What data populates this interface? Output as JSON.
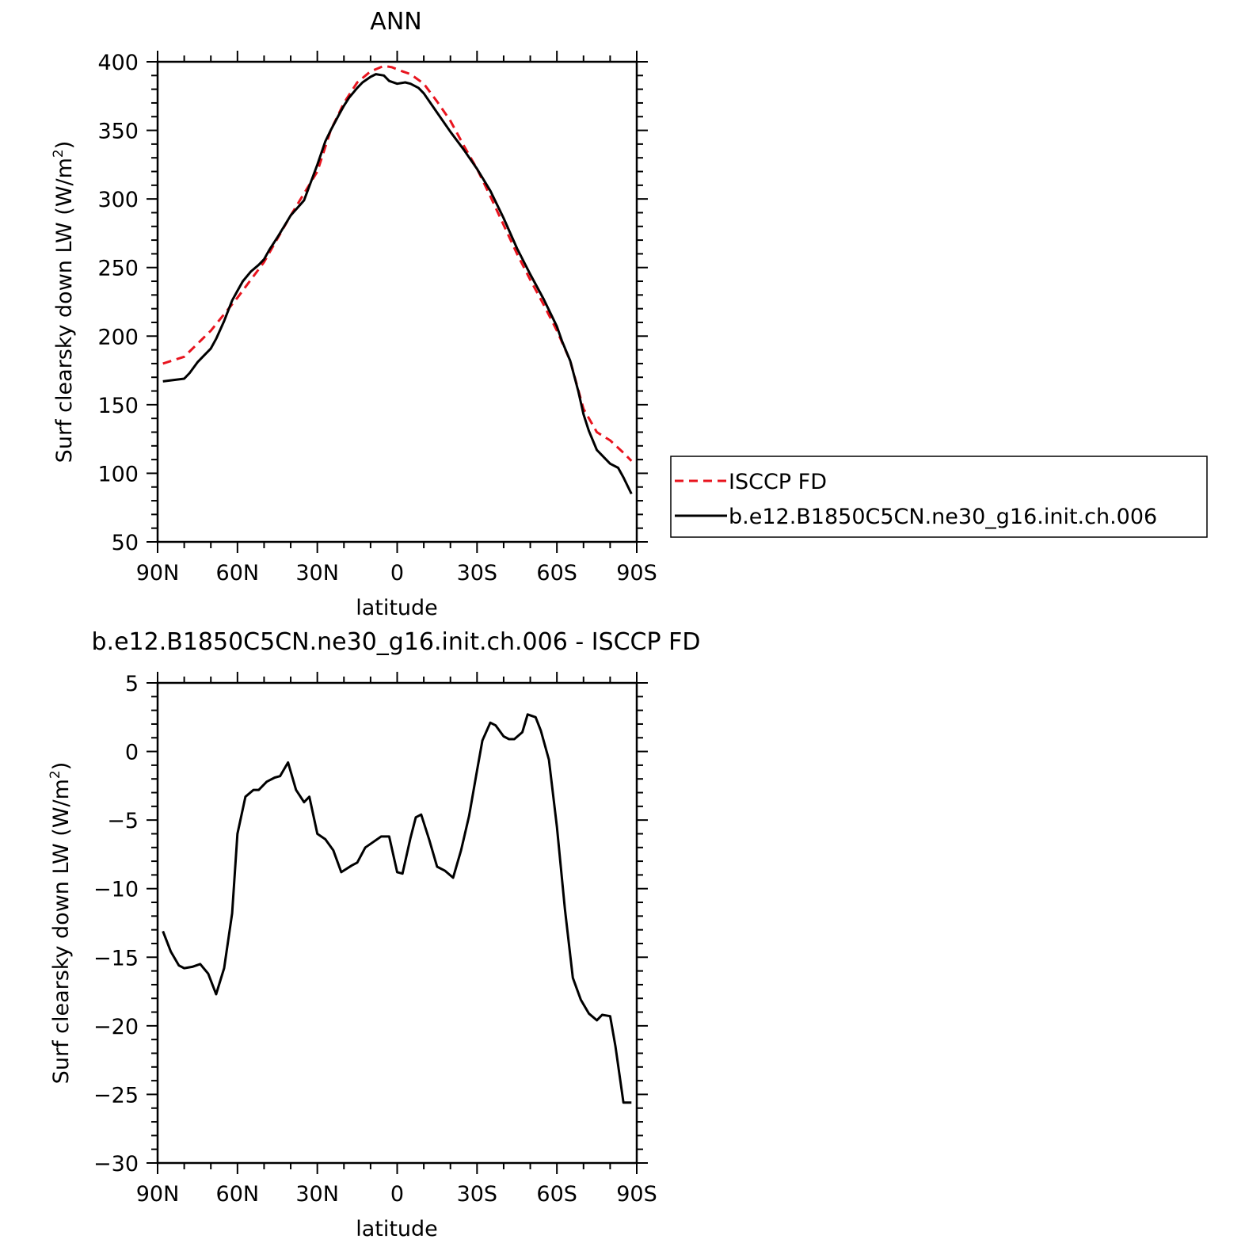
{
  "colors": {
    "obs": "#e8141e",
    "model": "#000000",
    "frame": "#000000"
  },
  "chart_data": [
    {
      "type": "line",
      "title": "ANN",
      "xlabel": "latitude",
      "ylabel_prefix": "Surf clearsky down LW (W/m",
      "ylabel_superscript": "2",
      "ylabel_suffix": ")",
      "xlim": [
        90,
        -90
      ],
      "ylim": [
        50,
        400
      ],
      "x_ticks": [
        {
          "value": 90,
          "label": "90N"
        },
        {
          "value": 60,
          "label": "60N"
        },
        {
          "value": 30,
          "label": "30N"
        },
        {
          "value": 0,
          "label": "0"
        },
        {
          "value": -30,
          "label": "30S"
        },
        {
          "value": -60,
          "label": "60S"
        },
        {
          "value": -90,
          "label": "90S"
        }
      ],
      "y_ticks": [
        50,
        100,
        150,
        200,
        250,
        300,
        350,
        400
      ],
      "legend_position": "right",
      "series": [
        {
          "name": "ISCCP FD",
          "style": "dashed",
          "color": "#e8141e",
          "x": [
            88,
            80,
            70,
            60,
            50,
            40,
            30,
            25,
            20,
            15,
            10,
            5,
            2,
            -2,
            -5,
            -10,
            -15,
            -20,
            -25,
            -30,
            -35,
            -40,
            -45,
            -50,
            -55,
            -60,
            -65,
            -70,
            -75,
            -80,
            -85,
            -88
          ],
          "y": [
            180,
            185,
            204,
            228,
            254,
            288,
            320,
            350,
            370,
            385,
            393,
            397,
            396,
            393,
            391,
            384,
            371,
            357,
            339,
            322,
            302,
            281,
            260,
            241,
            223,
            204,
            182,
            147,
            130,
            124,
            115,
            109
          ]
        },
        {
          "name": "b.e12.B1850C5CN.ne30_g16.init.ch.006",
          "style": "solid",
          "color": "#000000",
          "x": [
            88,
            80,
            78,
            75,
            72,
            70,
            68,
            65,
            62,
            60,
            58,
            55,
            52,
            50,
            48,
            45,
            40,
            35,
            30,
            27,
            25,
            22,
            20,
            18,
            15,
            13,
            10,
            8,
            5,
            3,
            0,
            -3,
            -5,
            -8,
            -10,
            -15,
            -20,
            -25,
            -30,
            -35,
            -40,
            -45,
            -50,
            -55,
            -60,
            -62,
            -65,
            -68,
            -70,
            -72,
            -75,
            -78,
            -80,
            -83,
            -85,
            -88
          ],
          "y": [
            167,
            169,
            173,
            181,
            187,
            191,
            198,
            211,
            226,
            233,
            240,
            247,
            252,
            256,
            263,
            272,
            288,
            299,
            325,
            342,
            350,
            361,
            368,
            374,
            381,
            385,
            389,
            391,
            390,
            386,
            384,
            385,
            384,
            381,
            377,
            363,
            349,
            336,
            322,
            306,
            286,
            264,
            245,
            227,
            207,
            196,
            182,
            160,
            143,
            131,
            117,
            111,
            107,
            104,
            97,
            85
          ]
        }
      ]
    },
    {
      "type": "line",
      "title": "b.e12.B1850C5CN.ne30_g16.init.ch.006 - ISCCP FD",
      "xlabel": "latitude",
      "ylabel_prefix": "Surf clearsky down LW (W/m",
      "ylabel_superscript": "2",
      "ylabel_suffix": ")",
      "xlim": [
        90,
        -90
      ],
      "ylim": [
        -30,
        5
      ],
      "x_ticks": [
        {
          "value": 90,
          "label": "90N"
        },
        {
          "value": 60,
          "label": "60N"
        },
        {
          "value": 30,
          "label": "30N"
        },
        {
          "value": 0,
          "label": "0"
        },
        {
          "value": -30,
          "label": "30S"
        },
        {
          "value": -60,
          "label": "60S"
        },
        {
          "value": -90,
          "label": "90S"
        }
      ],
      "y_ticks": [
        -30,
        -25,
        -20,
        -15,
        -10,
        -5,
        0,
        5
      ],
      "series": [
        {
          "style": "solid",
          "color": "#000000",
          "x": [
            88,
            85,
            82,
            80,
            77,
            74,
            71,
            68,
            65,
            62,
            60,
            57,
            54,
            52,
            49,
            46,
            44,
            41,
            38,
            35,
            33,
            30,
            27,
            24,
            21,
            17,
            15,
            12,
            9,
            6,
            3,
            0,
            -2,
            -5,
            -7,
            -9,
            -12,
            -15,
            -18,
            -21,
            -24,
            -27,
            -30,
            -32,
            -35,
            -37,
            -40,
            -42,
            -44,
            -47,
            -49,
            -52,
            -54,
            -57,
            -60,
            -63,
            -66,
            -69,
            -72,
            -75,
            -77,
            -80,
            -82,
            -85,
            -88
          ],
          "y": [
            -13.1,
            -14.6,
            -15.6,
            -15.8,
            -15.7,
            -15.5,
            -16.2,
            -17.7,
            -15.8,
            -11.8,
            -6.0,
            -3.3,
            -2.8,
            -2.8,
            -2.2,
            -1.9,
            -1.8,
            -0.8,
            -2.8,
            -3.7,
            -3.3,
            -6.0,
            -6.4,
            -7.2,
            -8.8,
            -8.3,
            -8.1,
            -7.0,
            -6.6,
            -6.2,
            -6.2,
            -8.8,
            -8.9,
            -6.3,
            -4.8,
            -4.6,
            -6.4,
            -8.4,
            -8.7,
            -9.2,
            -7.2,
            -4.7,
            -1.4,
            0.8,
            2.1,
            1.9,
            1.1,
            0.9,
            0.9,
            1.4,
            2.7,
            2.5,
            1.5,
            -0.6,
            -5.5,
            -11.5,
            -16.5,
            -18.1,
            -19.1,
            -19.6,
            -19.2,
            -19.3,
            -21.5,
            -25.6,
            -25.6
          ]
        }
      ]
    }
  ]
}
